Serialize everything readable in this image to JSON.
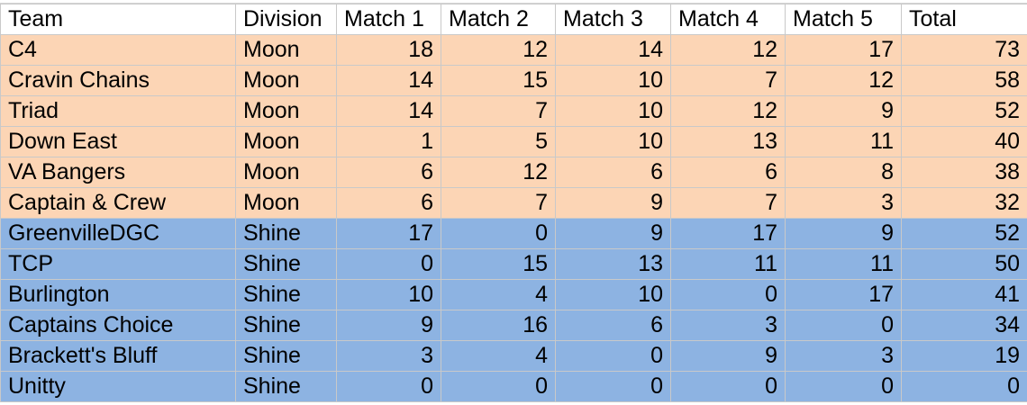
{
  "colors": {
    "moon_row_bg": "#fcd5b5",
    "shine_row_bg": "#8db3e2",
    "header_bg": "#ffffff",
    "grid_line": "#c9c9c9"
  },
  "columns": [
    "Team",
    "Division",
    "Match 1",
    "Match 2",
    "Match 3",
    "Match 4",
    "Match 5",
    "Total"
  ],
  "rows": [
    {
      "team": "C4",
      "division": "Moon",
      "match1": "18",
      "match2": "12",
      "match3": "14",
      "match4": "12",
      "match5": "17",
      "total": "73"
    },
    {
      "team": "Cravin Chains",
      "division": "Moon",
      "match1": "14",
      "match2": "15",
      "match3": "10",
      "match4": "7",
      "match5": "12",
      "total": "58"
    },
    {
      "team": "Triad",
      "division": "Moon",
      "match1": "14",
      "match2": "7",
      "match3": "10",
      "match4": "12",
      "match5": "9",
      "total": "52"
    },
    {
      "team": "Down East",
      "division": "Moon",
      "match1": "1",
      "match2": "5",
      "match3": "10",
      "match4": "13",
      "match5": "11",
      "total": "40"
    },
    {
      "team": "VA Bangers",
      "division": "Moon",
      "match1": "6",
      "match2": "12",
      "match3": "6",
      "match4": "6",
      "match5": "8",
      "total": "38"
    },
    {
      "team": "Captain & Crew",
      "division": "Moon",
      "match1": "6",
      "match2": "7",
      "match3": "9",
      "match4": "7",
      "match5": "3",
      "total": "32"
    },
    {
      "team": "GreenvilleDGC",
      "division": "Shine",
      "match1": "17",
      "match2": "0",
      "match3": "9",
      "match4": "17",
      "match5": "9",
      "total": "52"
    },
    {
      "team": "TCP",
      "division": "Shine",
      "match1": "0",
      "match2": "15",
      "match3": "13",
      "match4": "11",
      "match5": "11",
      "total": "50"
    },
    {
      "team": "Burlington",
      "division": "Shine",
      "match1": "10",
      "match2": "4",
      "match3": "10",
      "match4": "0",
      "match5": "17",
      "total": "41"
    },
    {
      "team": "Captains Choice",
      "division": "Shine",
      "match1": "9",
      "match2": "16",
      "match3": "6",
      "match4": "3",
      "match5": "0",
      "total": "34"
    },
    {
      "team": "Brackett's Bluff",
      "division": "Shine",
      "match1": "3",
      "match2": "4",
      "match3": "0",
      "match4": "9",
      "match5": "3",
      "total": "19"
    },
    {
      "team": "Unitty",
      "division": "Shine",
      "match1": "0",
      "match2": "0",
      "match3": "0",
      "match4": "0",
      "match5": "0",
      "total": "0"
    }
  ]
}
